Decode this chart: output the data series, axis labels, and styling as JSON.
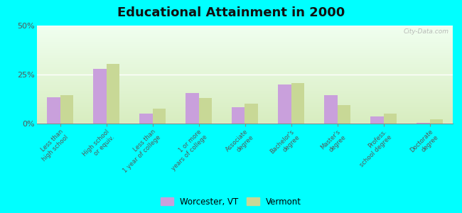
{
  "title": "Educational Attainment in 2000",
  "categories": [
    "Less than\nhigh school",
    "High school\nor equiv.",
    "Less than\n1 year of college",
    "1 or more\nyears of college",
    "Associate\ndegree",
    "Bachelor's\ndegree",
    "Master's\ndegree",
    "Profess.\nschool degree",
    "Doctorate\ndegree"
  ],
  "worcester_values": [
    13.5,
    28.0,
    5.0,
    15.5,
    8.5,
    20.0,
    14.5,
    3.5,
    0.3
  ],
  "vermont_values": [
    14.5,
    30.5,
    7.5,
    13.0,
    10.0,
    20.5,
    9.5,
    5.0,
    2.0
  ],
  "worcester_color": "#c9a0dc",
  "vermont_color": "#c8d896",
  "background_top": "#f0fff0",
  "background_bottom": "#d8edc0",
  "outer_background": "#00ffff",
  "ylim": [
    0,
    50
  ],
  "yticks": [
    0,
    25,
    50
  ],
  "ytick_labels": [
    "0%",
    "25%",
    "50%"
  ],
  "watermark": "City-Data.com",
  "legend_worcester": "Worcester, VT",
  "legend_vermont": "Vermont"
}
